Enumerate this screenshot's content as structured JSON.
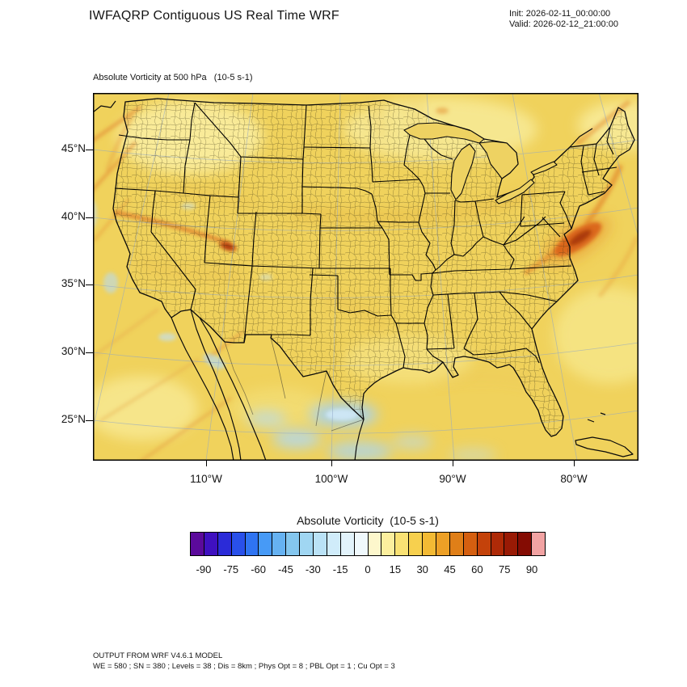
{
  "header": {
    "title": "IWFAQRP Contiguous US Real Time WRF",
    "init_label": "Init: 2026-02-11_00:00:00",
    "valid_label": "Valid: 2026-02-12_21:00:00"
  },
  "plot": {
    "field_title": "Absolute Vorticity at 500 hPa   (10-5 s-1)"
  },
  "axes": {
    "lat_ticks": [
      "45°N",
      "40°N",
      "35°N",
      "30°N",
      "25°N"
    ],
    "lon_ticks": [
      "110°W",
      "100°W",
      "90°W",
      "80°W"
    ]
  },
  "colorbar": {
    "title": "Absolute Vorticity  (10-5 s-1)",
    "tick_labels": [
      "-90",
      "-75",
      "-60",
      "-45",
      "-30",
      "-15",
      "0",
      "15",
      "30",
      "45",
      "60",
      "75",
      "90"
    ],
    "colors": [
      "#5b0a9b",
      "#3f10c0",
      "#2b2bd8",
      "#2950ea",
      "#2f74f2",
      "#479af6",
      "#66b2f2",
      "#84c6ee",
      "#a0d6f2",
      "#bae2f6",
      "#d0ecfa",
      "#e2f3fb",
      "#f0f9fd",
      "#fdf7cc",
      "#fcef9e",
      "#fae274",
      "#f7d04e",
      "#f3ba34",
      "#eda026",
      "#e07f18",
      "#d55f10",
      "#c4420a",
      "#ae2a07",
      "#991a05",
      "#840c03",
      "#f2a3a3"
    ]
  },
  "footer": {
    "line1": "OUTPUT FROM WRF V4.6.1 MODEL",
    "line2": "WE = 580 ; SN = 380 ; Levels = 38 ; Dis = 8km ; Phys Opt = 8 ; PBL Opt = 1 ; Cu Opt = 3"
  },
  "chart_data": {
    "type": "heatmap",
    "title": "Absolute Vorticity at 500 hPa",
    "units": "10-5 s-1",
    "init": "2026-02-11_00:00:00",
    "valid": "2026-02-12_21:00:00",
    "region": "Contiguous US (Lambert conformal WRF domain)",
    "x_tick_labels_lon": [
      "110°W",
      "100°W",
      "90°W",
      "80°W"
    ],
    "y_tick_labels_lat": [
      "45°N",
      "40°N",
      "35°N",
      "30°N",
      "25°N"
    ],
    "colorbar": {
      "label": "Absolute Vorticity  (10-5 s-1)",
      "tick_values": [
        -90,
        -75,
        -60,
        -45,
        -30,
        -15,
        0,
        15,
        30,
        45,
        60,
        75,
        90
      ],
      "level_step": 7.5,
      "range": [
        -97.5,
        97.5
      ],
      "palette": [
        "#5b0a9b",
        "#3f10c0",
        "#2b2bd8",
        "#2950ea",
        "#2f74f2",
        "#479af6",
        "#66b2f2",
        "#84c6ee",
        "#a0d6f2",
        "#bae2f6",
        "#d0ecfa",
        "#e2f3fb",
        "#f0f9fd",
        "#fdf7cc",
        "#fcef9e",
        "#fae274",
        "#f7d04e",
        "#f3ba34",
        "#eda026",
        "#e07f18",
        "#d55f10",
        "#c4420a",
        "#ae2a07",
        "#991a05",
        "#840c03",
        "#f2a3a3"
      ]
    },
    "field_notes": "Field mostly +5 to +20 (golden yellow) over CONUS; orange vorticity filaments off the Pacific NW coast, across northern Nevada/Utah with a small red maximum near the NV/UT border, a strong dark-orange maximum over Virginia/Mid-Atlantic, streaks off New England; weak negative (light blue) patches over south Texas, northeastern Mexico, Baja region and offshore Pacific.",
    "model": "OUTPUT FROM WRF V4.6.1 MODEL",
    "grid": "WE = 580 ; SN = 380 ; Levels = 38 ; Dis = 8km ; Phys Opt = 8 ; PBL Opt = 1 ; Cu Opt = 3"
  }
}
